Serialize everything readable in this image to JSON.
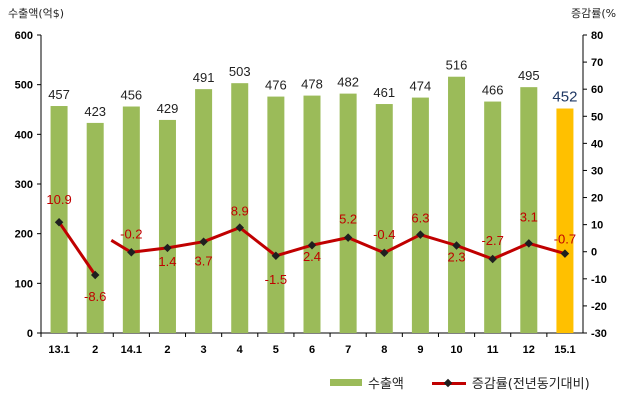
{
  "labels": {
    "left_unit": "수출액(억$)",
    "right_unit": "증감률(%"
  },
  "legend": {
    "bar_label": "수출액",
    "line_label": "증감률(전년동기대비)"
  },
  "chart_data": {
    "type": "bar",
    "categories": [
      "13.1",
      "2",
      "14.1",
      "2",
      "3",
      "4",
      "5",
      "6",
      "7",
      "8",
      "9",
      "10",
      "11",
      "12",
      "15.1"
    ],
    "series": [
      {
        "name": "수출액",
        "type": "bar",
        "axis": "left",
        "values": [
          457,
          423,
          456,
          429,
          491,
          503,
          476,
          478,
          482,
          461,
          474,
          516,
          466,
          495,
          452
        ]
      },
      {
        "name": "증감률(전년동기대비)",
        "type": "line",
        "axis": "right",
        "values": [
          10.9,
          -8.6,
          -0.2,
          1.4,
          3.7,
          8.9,
          -1.5,
          2.4,
          5.2,
          -0.4,
          6.3,
          2.3,
          -2.7,
          3.1,
          -0.7
        ]
      }
    ],
    "y_left": {
      "min": 0,
      "max": 600,
      "ticks": [
        0,
        100,
        200,
        300,
        400,
        500,
        600
      ]
    },
    "y_right": {
      "min": -30,
      "max": 80,
      "ticks": [
        -30,
        -20,
        -10,
        0,
        10,
        20,
        30,
        40,
        50,
        60,
        70,
        80
      ]
    },
    "line_break_after_index": 1,
    "highlight_index": 14,
    "colors": {
      "bar": "#9bbb59",
      "bar_highlight": "#ffc000",
      "line": "#c00000",
      "marker": "#1f1f1f",
      "line_label": "#c00000",
      "bar_label": "#222222",
      "highlight_label": "#1f3864"
    },
    "grid": false,
    "legend_position": "bottom-right"
  }
}
